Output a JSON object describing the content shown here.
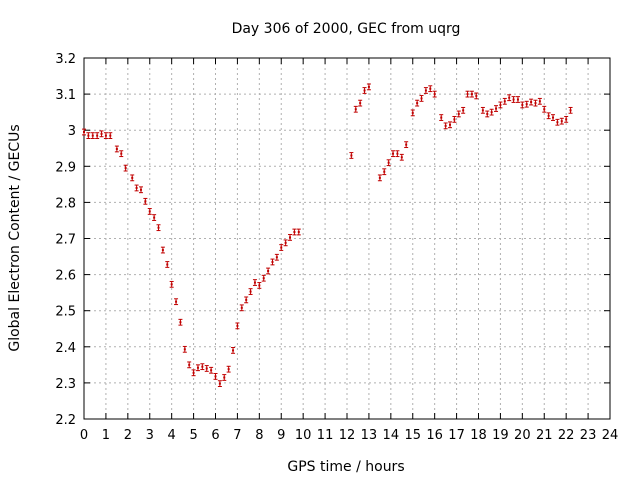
{
  "chart_data": {
    "type": "scatter",
    "title": "Day 306 of 2000, GEC from uqrg",
    "xlabel": "GPS time / hours",
    "ylabel": "Global Electron Content / GECUs",
    "xlim": [
      0,
      24
    ],
    "ylim": [
      2.2,
      3.2
    ],
    "xticks": [
      "0",
      "1",
      "2",
      "3",
      "4",
      "5",
      "6",
      "7",
      "8",
      "9",
      "10",
      "11",
      "12",
      "13",
      "14",
      "15",
      "16",
      "17",
      "18",
      "19",
      "20",
      "21",
      "22",
      "23",
      "24"
    ],
    "yticks": [
      "2.2",
      "2.3",
      "2.4",
      "2.5",
      "2.6",
      "2.7",
      "2.8",
      "2.9",
      "3",
      "3.1",
      "3.2"
    ],
    "grid": true,
    "series_color": "#c00000",
    "error": 0.008,
    "points": [
      [
        0.0,
        2.995
      ],
      [
        0.2,
        2.985
      ],
      [
        0.4,
        2.985
      ],
      [
        0.6,
        2.985
      ],
      [
        0.8,
        2.99
      ],
      [
        1.0,
        2.985
      ],
      [
        1.2,
        2.985
      ],
      [
        1.5,
        2.948
      ],
      [
        1.7,
        2.935
      ],
      [
        1.9,
        2.895
      ],
      [
        2.2,
        2.868
      ],
      [
        2.4,
        2.84
      ],
      [
        2.6,
        2.835
      ],
      [
        2.8,
        2.803
      ],
      [
        3.0,
        2.775
      ],
      [
        3.2,
        2.758
      ],
      [
        3.4,
        2.73
      ],
      [
        3.6,
        2.668
      ],
      [
        3.8,
        2.628
      ],
      [
        4.0,
        2.573
      ],
      [
        4.2,
        2.525
      ],
      [
        4.4,
        2.468
      ],
      [
        4.6,
        2.393
      ],
      [
        4.8,
        2.35
      ],
      [
        5.0,
        2.328
      ],
      [
        5.2,
        2.342
      ],
      [
        5.4,
        2.345
      ],
      [
        5.6,
        2.34
      ],
      [
        5.8,
        2.335
      ],
      [
        6.0,
        2.318
      ],
      [
        6.2,
        2.298
      ],
      [
        6.4,
        2.315
      ],
      [
        6.6,
        2.338
      ],
      [
        6.8,
        2.39
      ],
      [
        7.0,
        2.458
      ],
      [
        7.2,
        2.508
      ],
      [
        7.4,
        2.53
      ],
      [
        7.6,
        2.553
      ],
      [
        7.8,
        2.578
      ],
      [
        8.0,
        2.57
      ],
      [
        8.2,
        2.59
      ],
      [
        8.4,
        2.61
      ],
      [
        8.6,
        2.635
      ],
      [
        8.8,
        2.648
      ],
      [
        9.0,
        2.675
      ],
      [
        9.2,
        2.688
      ],
      [
        9.4,
        2.703
      ],
      [
        9.6,
        2.718
      ],
      [
        9.8,
        2.718
      ],
      [
        12.2,
        2.93
      ],
      [
        12.4,
        3.058
      ],
      [
        12.6,
        3.075
      ],
      [
        12.8,
        3.11
      ],
      [
        13.0,
        3.12
      ],
      [
        13.5,
        2.868
      ],
      [
        13.7,
        2.885
      ],
      [
        13.9,
        2.91
      ],
      [
        14.1,
        2.935
      ],
      [
        14.3,
        2.935
      ],
      [
        14.5,
        2.925
      ],
      [
        14.7,
        2.96
      ],
      [
        15.0,
        3.048
      ],
      [
        15.2,
        3.075
      ],
      [
        15.4,
        3.088
      ],
      [
        15.6,
        3.11
      ],
      [
        15.8,
        3.115
      ],
      [
        16.0,
        3.1
      ],
      [
        16.3,
        3.035
      ],
      [
        16.5,
        3.012
      ],
      [
        16.7,
        3.015
      ],
      [
        16.9,
        3.03
      ],
      [
        17.1,
        3.045
      ],
      [
        17.3,
        3.055
      ],
      [
        17.5,
        3.1
      ],
      [
        17.7,
        3.1
      ],
      [
        17.9,
        3.095
      ],
      [
        18.2,
        3.055
      ],
      [
        18.4,
        3.045
      ],
      [
        18.6,
        3.05
      ],
      [
        18.8,
        3.06
      ],
      [
        19.0,
        3.07
      ],
      [
        19.2,
        3.08
      ],
      [
        19.4,
        3.09
      ],
      [
        19.6,
        3.085
      ],
      [
        19.8,
        3.085
      ],
      [
        20.0,
        3.07
      ],
      [
        20.2,
        3.072
      ],
      [
        20.4,
        3.078
      ],
      [
        20.6,
        3.075
      ],
      [
        20.8,
        3.08
      ],
      [
        21.0,
        3.058
      ],
      [
        21.2,
        3.04
      ],
      [
        21.4,
        3.035
      ],
      [
        21.6,
        3.022
      ],
      [
        21.8,
        3.025
      ],
      [
        22.0,
        3.03
      ],
      [
        22.2,
        3.055
      ]
    ]
  }
}
